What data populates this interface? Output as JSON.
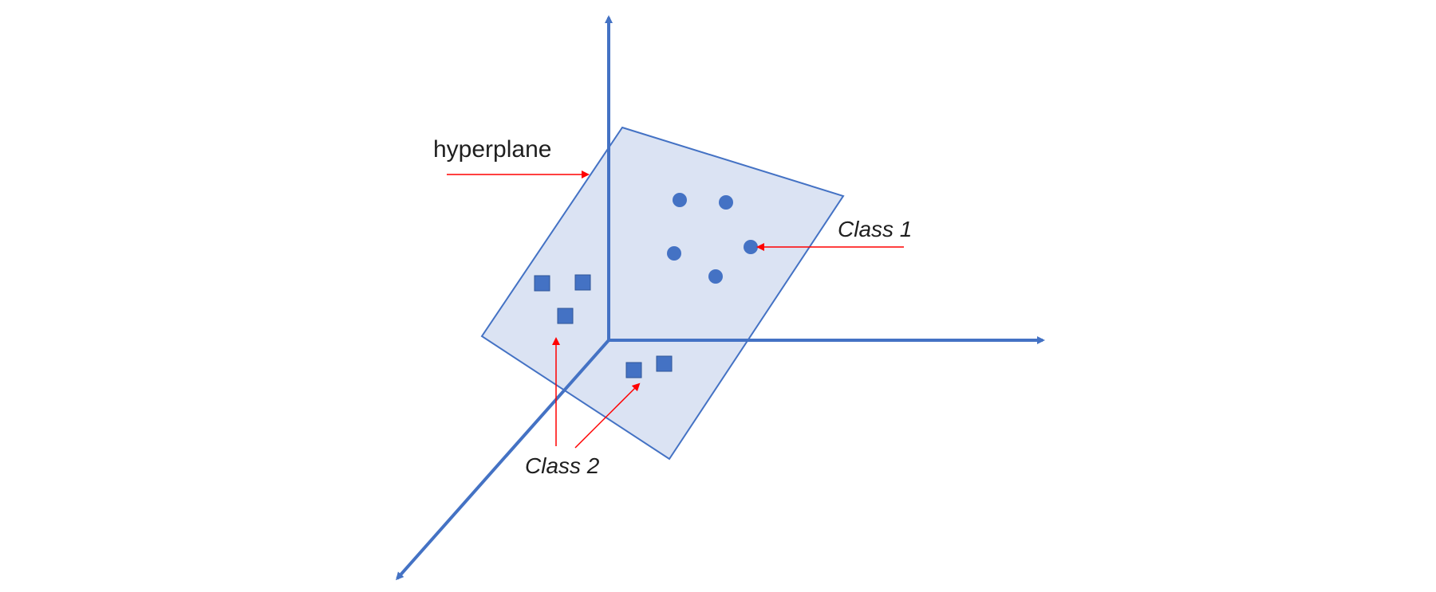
{
  "diagram": {
    "labels": {
      "hyperplane": "hyperplane",
      "class1": "Class 1",
      "class2": "Class 2"
    },
    "colors": {
      "axis": "#4472c4",
      "plane_fill": "#dbe3f3",
      "plane_stroke": "#4472c4",
      "point_fill": "#4472c4",
      "annotation_arrow": "#ff0000",
      "text": "#1f1f1f"
    },
    "class1_point_count": 5,
    "class2_point_count": 5
  }
}
